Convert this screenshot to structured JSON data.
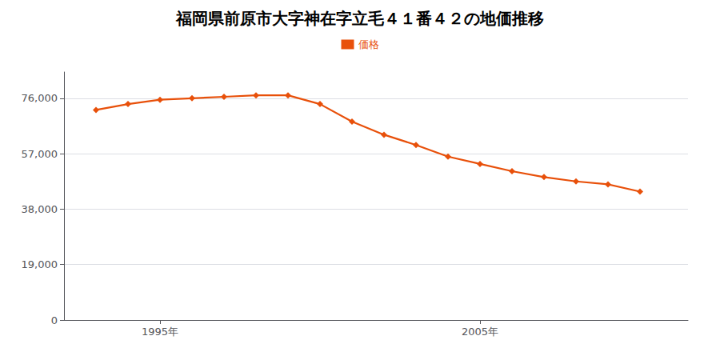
{
  "chart_data": {
    "type": "line",
    "title": "福岡県前原市大字神在字立毛４１番４２の地価推移",
    "x": [
      1993,
      1994,
      1995,
      1996,
      1997,
      1998,
      1999,
      2000,
      2001,
      2002,
      2003,
      2004,
      2005,
      2006,
      2007,
      2008,
      2009,
      2010
    ],
    "series": [
      {
        "name": "価格",
        "color": "#E8500A",
        "marker": "diamond",
        "values": [
          72000,
          74000,
          75500,
          76000,
          76500,
          77000,
          77000,
          74000,
          68000,
          63500,
          60000,
          56000,
          53500,
          51000,
          49000,
          47500,
          46500,
          44000
        ]
      }
    ],
    "xlim": [
      1992,
      2011.5
    ],
    "xticks": [
      {
        "value": 1995,
        "label": "1995年"
      },
      {
        "value": 2005,
        "label": "2005年"
      }
    ],
    "ylim": [
      0,
      85000
    ],
    "yticks": [
      0,
      {
        "value": 19000,
        "label": "19,000"
      },
      {
        "value": 38000,
        "label": "38,000"
      },
      {
        "value": 57000,
        "label": "57,000"
      },
      {
        "value": 76000,
        "label": "76,000"
      }
    ],
    "grid": true,
    "legend": "top"
  }
}
